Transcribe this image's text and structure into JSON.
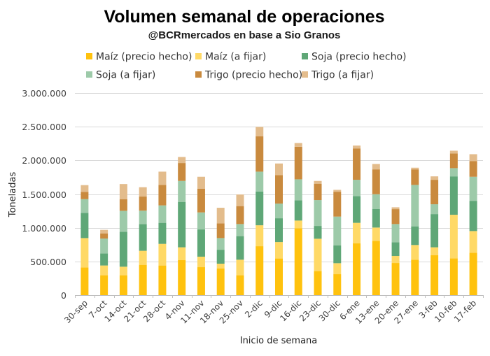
{
  "chart_data": {
    "type": "bar",
    "stacked": true,
    "title": "Volumen semanal de operaciones",
    "subtitle": "@BCRmercados en base a Sio Granos",
    "xlabel": "Inicio de semana",
    "ylabel": "Toneladas",
    "ylim": [
      0,
      3000000
    ],
    "yticks": [
      0,
      500000,
      1000000,
      1500000,
      2000000,
      2500000,
      3000000
    ],
    "ytick_labels": [
      "0",
      "500.000",
      "1.000.000",
      "1.500.000",
      "2.000.000",
      "2.500.000",
      "3.000.000"
    ],
    "grid": true,
    "legend_position": "top",
    "categories": [
      "30-sep",
      "7-oct",
      "14-oct",
      "21-oct",
      "28-oct",
      "4-nov",
      "11-nov",
      "18-nov",
      "25-nov",
      "2-dic",
      "9-dic",
      "16-dic",
      "23-dic",
      "30-dic",
      "6-ene",
      "13-ene",
      "20-ene",
      "27-ene",
      "3-feb",
      "10-feb",
      "17-feb"
    ],
    "series": [
      {
        "name": "Maíz (precio hecho)",
        "color": "#FFC20E",
        "values": [
          412000,
          295000,
          295000,
          450000,
          440000,
          519000,
          415000,
          398000,
          295000,
          726000,
          544000,
          993000,
          357000,
          311000,
          768000,
          806000,
          477000,
          526000,
          595000,
          547000,
          630000
        ]
      },
      {
        "name": "Maíz (a fijar)",
        "color": "#FFD966",
        "values": [
          435000,
          145000,
          127000,
          208000,
          321000,
          191000,
          156000,
          69000,
          231000,
          311000,
          244000,
          114000,
          480000,
          163000,
          305000,
          197000,
          104000,
          218000,
          115000,
          646000,
          321000
        ]
      },
      {
        "name": "Soja (precio hecho)",
        "color": "#5FA777",
        "values": [
          374000,
          179000,
          519000,
          397000,
          312000,
          674000,
          404000,
          207000,
          350000,
          502000,
          353000,
          301000,
          190000,
          263000,
          397000,
          277000,
          204000,
          277000,
          493000,
          570000,
          449000
        ]
      },
      {
        "name": "Soja (a fijar)",
        "color": "#9DCAA9",
        "values": [
          204000,
          221000,
          311000,
          199000,
          259000,
          311000,
          253000,
          173000,
          179000,
          294000,
          218000,
          311000,
          384000,
          429000,
          242000,
          218000,
          270000,
          615000,
          146000,
          122000,
          357000
        ]
      },
      {
        "name": "Trigo (precio hecho)",
        "color": "#C98A3E",
        "values": [
          107000,
          77000,
          173000,
          209000,
          304000,
          266000,
          353000,
          218000,
          267000,
          526000,
          422000,
          484000,
          243000,
          369000,
          466000,
          369000,
          221000,
          231000,
          363000,
          218000,
          231000
        ]
      },
      {
        "name": "Trigo (a fijar)",
        "color": "#E3BC8C",
        "values": [
          101000,
          52000,
          224000,
          139000,
          197000,
          90000,
          176000,
          232000,
          172000,
          138000,
          173000,
          55000,
          41000,
          28000,
          42000,
          80000,
          28000,
          25000,
          51000,
          41000,
          104000
        ]
      }
    ]
  }
}
